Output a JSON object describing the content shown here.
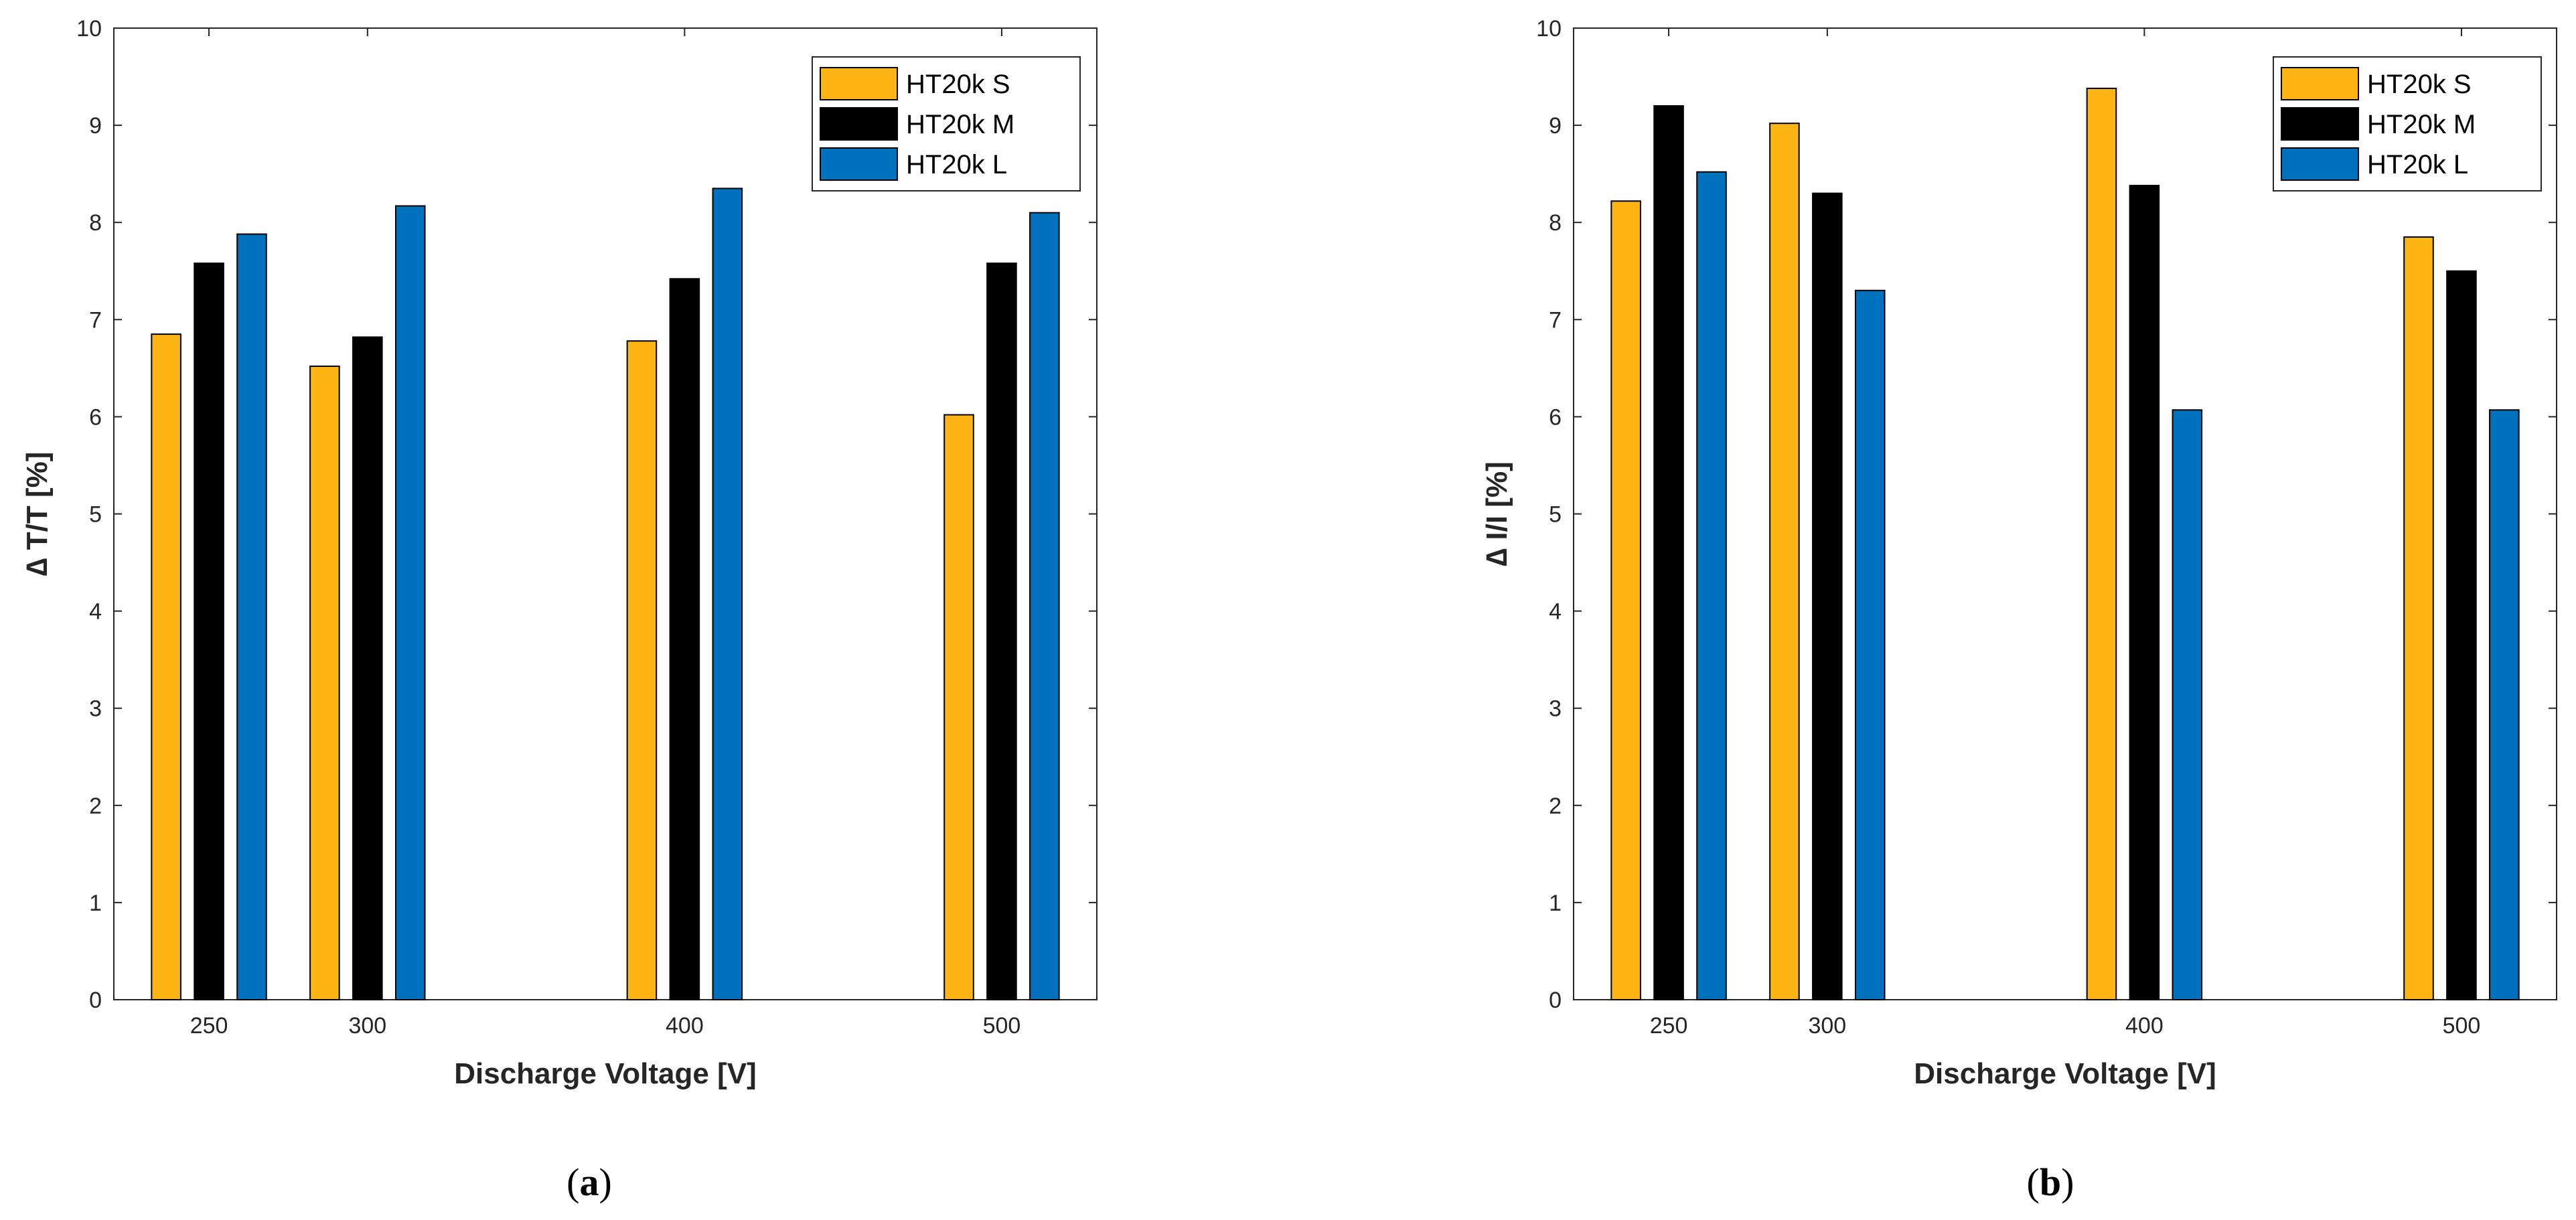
{
  "figure_captions": [
    {
      "open": "(",
      "letter": "a",
      "close": ")"
    },
    {
      "open": "(",
      "letter": "b",
      "close": ")"
    }
  ],
  "colors": {
    "HT20k S": "#FDB515",
    "HT20k M": "#000000",
    "HT20k L": "#0072BD"
  },
  "chart_data": [
    {
      "type": "bar",
      "panel": "a",
      "title": "",
      "xlabel": "Discharge Voltage [V]",
      "ylabel": "∆ T/T [%]",
      "x": [
        250,
        300,
        400,
        500
      ],
      "xticks": [
        "250",
        "300",
        "400",
        "500"
      ],
      "xlim": [
        220,
        530
      ],
      "ylim": [
        0,
        10
      ],
      "yticks": [
        "0",
        "1",
        "2",
        "3",
        "4",
        "5",
        "6",
        "7",
        "8",
        "9",
        "10"
      ],
      "grid": false,
      "legend_position": "top-right",
      "series": [
        {
          "name": "HT20k S",
          "values": [
            6.85,
            6.52,
            6.78,
            6.02
          ]
        },
        {
          "name": "HT20k M",
          "values": [
            7.58,
            6.82,
            7.42,
            7.58
          ]
        },
        {
          "name": "HT20k L",
          "values": [
            7.88,
            8.17,
            8.35,
            8.1
          ]
        }
      ]
    },
    {
      "type": "bar",
      "panel": "b",
      "title": "",
      "xlabel": "Discharge Voltage [V]",
      "ylabel": "∆ I/I [%]",
      "x": [
        250,
        300,
        400,
        500
      ],
      "xticks": [
        "250",
        "300",
        "400",
        "500"
      ],
      "xlim": [
        220,
        530
      ],
      "ylim": [
        0,
        10
      ],
      "yticks": [
        "0",
        "1",
        "2",
        "3",
        "4",
        "5",
        "6",
        "7",
        "8",
        "9",
        "10"
      ],
      "grid": false,
      "legend_position": "top-right",
      "series": [
        {
          "name": "HT20k S",
          "values": [
            8.22,
            9.02,
            9.38,
            7.85
          ]
        },
        {
          "name": "HT20k M",
          "values": [
            9.2,
            8.3,
            8.38,
            7.5
          ]
        },
        {
          "name": "HT20k L",
          "values": [
            8.52,
            7.3,
            6.07,
            6.07
          ]
        }
      ]
    }
  ]
}
